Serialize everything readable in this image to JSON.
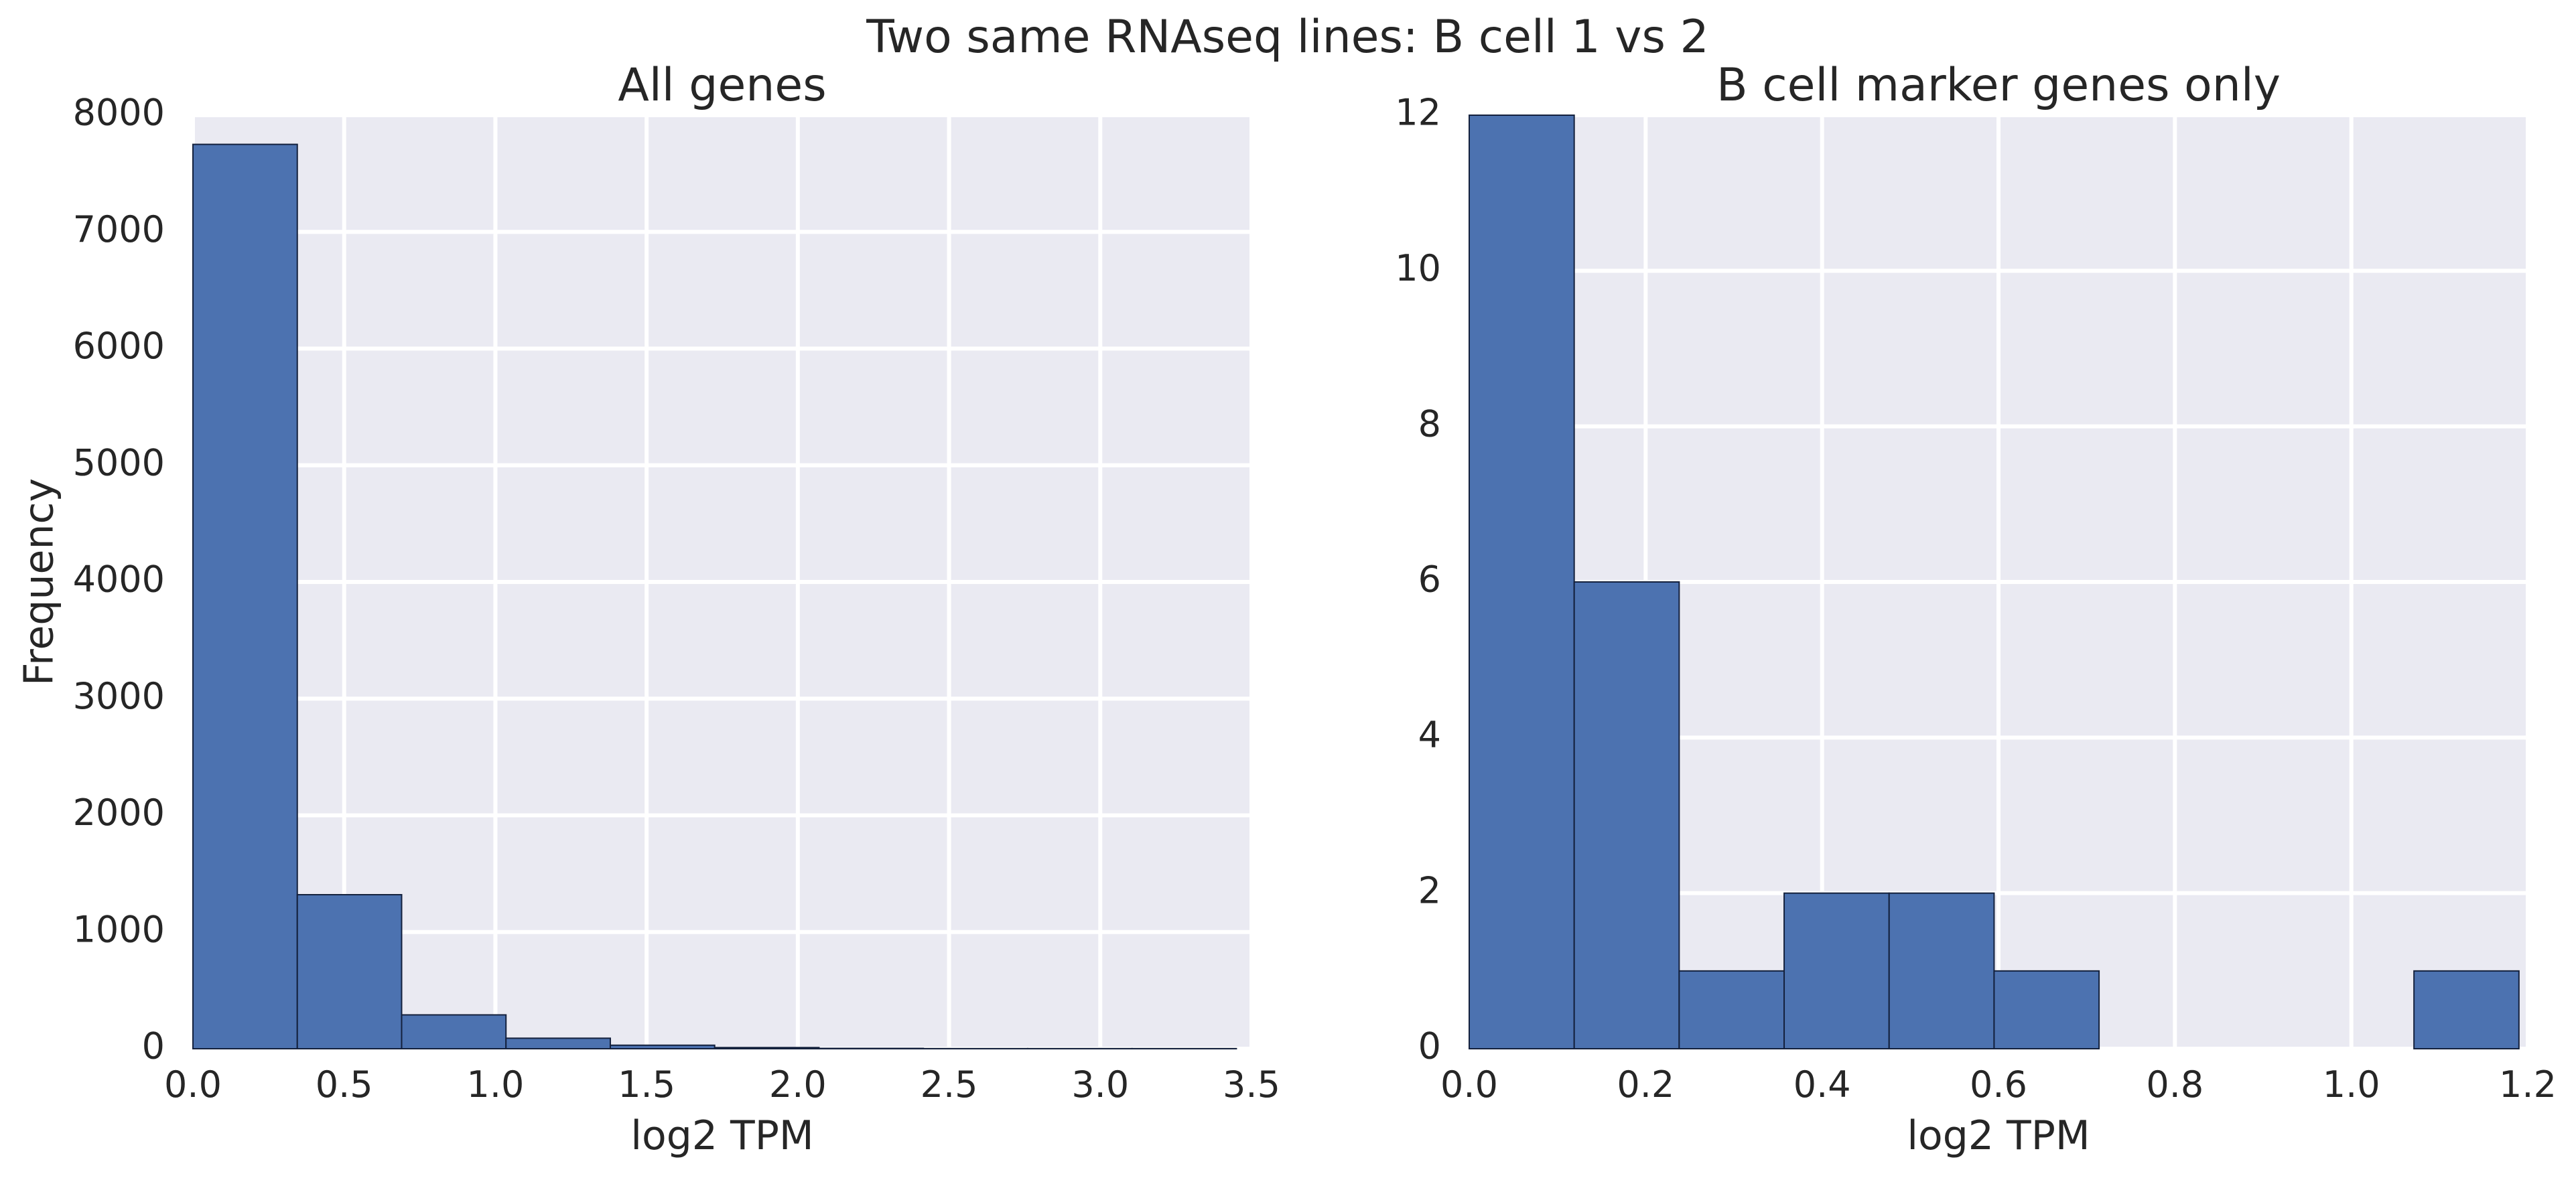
{
  "suptitle": "Two same RNAseq lines: B cell 1 vs 2",
  "colors": {
    "bar": "#4C72B0",
    "edge": "#14213d",
    "background": "#EAEAF2",
    "grid": "#FFFFFF"
  },
  "chart_data": [
    {
      "type": "bar",
      "title": "All genes",
      "xlabel": "log2 TPM",
      "ylabel": "Frequency",
      "xlim": [
        0,
        3.5
      ],
      "ylim": [
        0,
        8000
      ],
      "xticks": [
        0.0,
        0.5,
        1.0,
        1.5,
        2.0,
        2.5,
        3.0,
        3.5
      ],
      "xtick_labels": [
        "0.0",
        "0.5",
        "1.0",
        "1.5",
        "2.0",
        "2.5",
        "3.0",
        "3.5"
      ],
      "yticks": [
        0,
        1000,
        2000,
        3000,
        4000,
        5000,
        6000,
        7000,
        8000
      ],
      "ytick_labels": [
        "0",
        "1000",
        "2000",
        "3000",
        "4000",
        "5000",
        "6000",
        "7000",
        "8000"
      ],
      "grid": true,
      "bin_edges": [
        0.0,
        0.345,
        0.69,
        1.035,
        1.38,
        1.725,
        2.07,
        2.415,
        2.76,
        3.105,
        3.45
      ],
      "values": [
        7750,
        1320,
        290,
        90,
        30,
        10,
        3,
        1,
        1,
        1
      ]
    },
    {
      "type": "bar",
      "title": "B cell marker genes only",
      "xlabel": "log2 TPM",
      "ylabel": "",
      "xlim": [
        0,
        1.2
      ],
      "ylim": [
        0,
        12
      ],
      "xticks": [
        0.0,
        0.2,
        0.4,
        0.6,
        0.8,
        1.0,
        1.2
      ],
      "xtick_labels": [
        "0.0",
        "0.2",
        "0.4",
        "0.6",
        "0.8",
        "1.0",
        "1.2"
      ],
      "yticks": [
        0,
        2,
        4,
        6,
        8,
        10,
        12
      ],
      "ytick_labels": [
        "0",
        "2",
        "4",
        "6",
        "8",
        "10",
        "12"
      ],
      "grid": true,
      "bin_edges": [
        0.0,
        0.119,
        0.238,
        0.357,
        0.476,
        0.595,
        0.714,
        0.833,
        0.952,
        1.071,
        1.19
      ],
      "values": [
        12,
        6,
        1,
        2,
        2,
        1,
        0,
        0,
        0,
        1
      ]
    }
  ]
}
